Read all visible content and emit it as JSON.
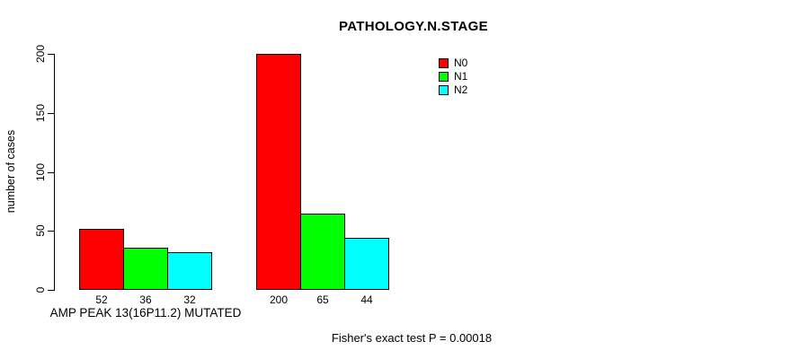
{
  "chart_data": {
    "type": "bar",
    "title": "PATHOLOGY.N.STAGE",
    "ylabel": "number of cases",
    "xlabel": "AMP PEAK 13(16P11.2) MUTATED",
    "ylim": [
      0,
      200
    ],
    "y_ticks": [
      0,
      50,
      100,
      150,
      200
    ],
    "categories": [
      "AMP PEAK 13(16P11.2) MUTATED",
      ""
    ],
    "series": [
      {
        "name": "N0",
        "color": "#ff0000",
        "values": [
          52,
          200
        ]
      },
      {
        "name": "N1",
        "color": "#00ff00",
        "values": [
          36,
          65
        ]
      },
      {
        "name": "N2",
        "color": "#00ffff",
        "values": [
          32,
          44
        ]
      }
    ],
    "bar_value_labels": [
      [
        "52",
        "36",
        "32"
      ],
      [
        "200",
        "65",
        "44"
      ]
    ],
    "legend_position": "top-right",
    "grid": false,
    "annotation": "Fisher's exact test P = 0.00018"
  }
}
